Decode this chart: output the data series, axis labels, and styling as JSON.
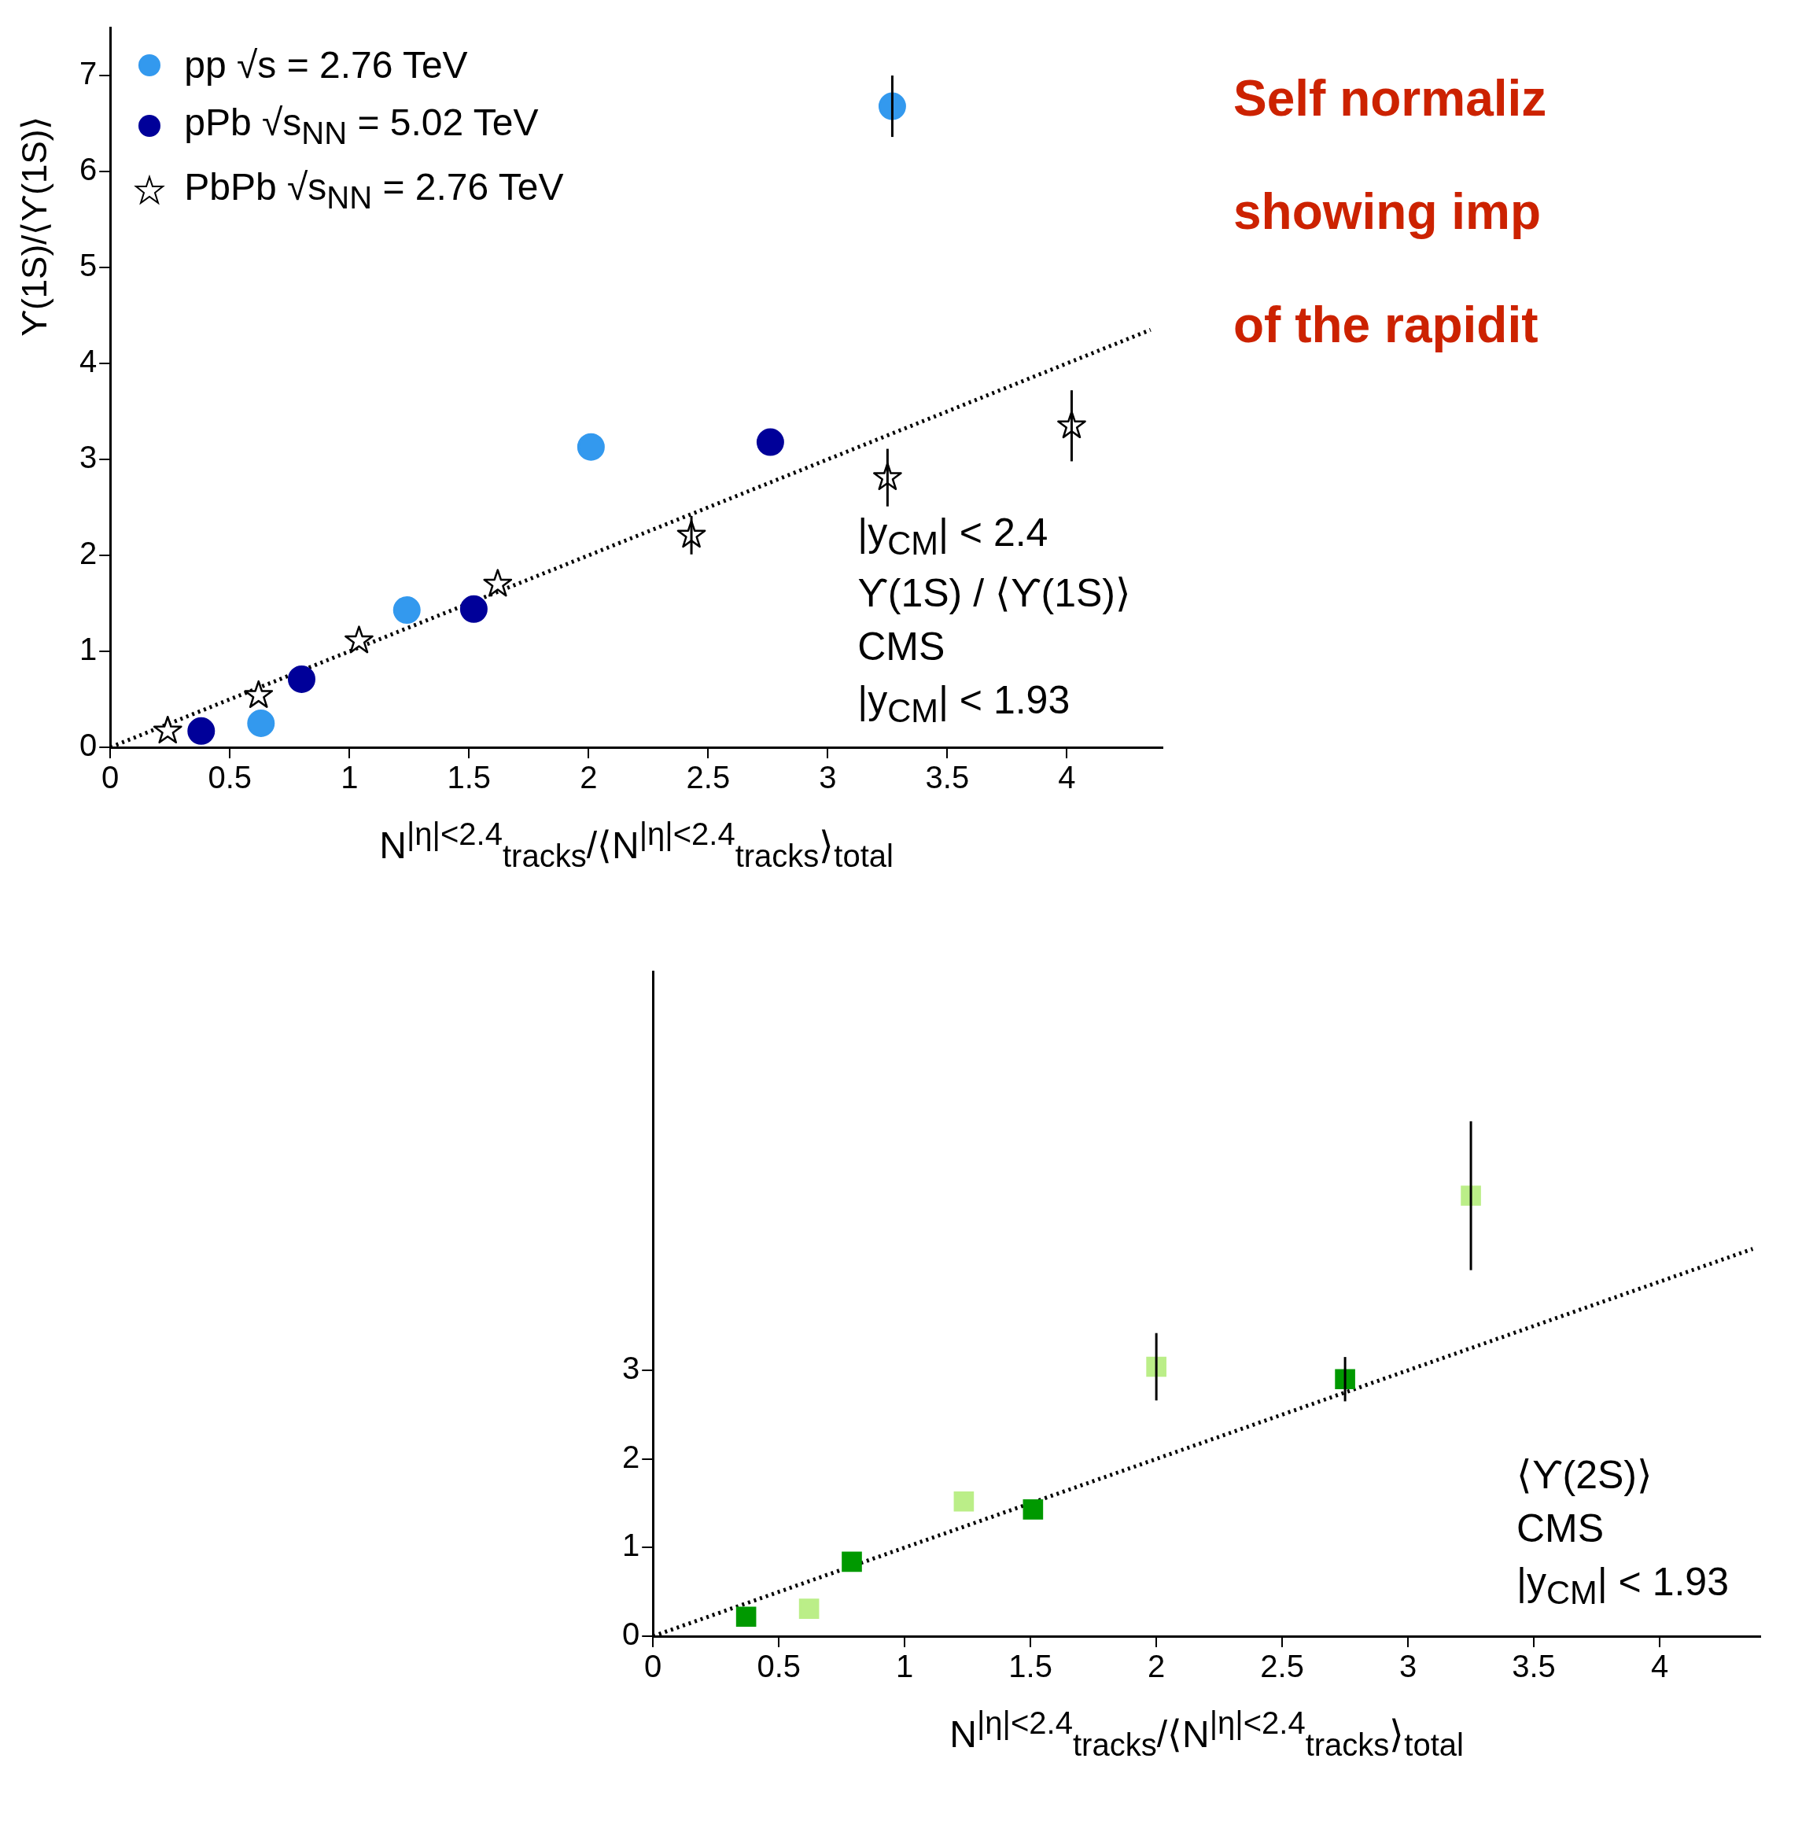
{
  "chart_data": [
    {
      "type": "scatter",
      "ylabel": "ϒ(1S)/⟨ϒ(1S)⟩",
      "xlabel": "N$^{|η|<2.4}$$_{tracks}$/⟨N$^{|η|<2.4}$$_{tracks}$⟩$_{total}$",
      "xlim": [
        0,
        4.4
      ],
      "ylim": [
        0,
        7.5
      ],
      "xticks": [
        0,
        0.5,
        1,
        1.5,
        2,
        2.5,
        3,
        3.5,
        4
      ],
      "yticks": [
        0,
        1,
        2,
        3,
        4,
        5,
        6,
        7
      ],
      "legend": "top left",
      "annotations": [
        "|y$_{CM}$| < 2.4",
        "ϒ(1S) / ⟨ϒ(1S)⟩",
        "CMS",
        "|y$_{CM}$| < 1.93"
      ],
      "series": [
        {
          "name": "pp √s = 2.76 TeV",
          "color": "#3399ee",
          "marker": "circle",
          "x": [
            0.63,
            1.24,
            2.01,
            3.27
          ],
          "values": [
            0.25,
            1.43,
            3.13,
            6.68
          ],
          "errors": [
            null,
            null,
            null,
            0.32
          ]
        },
        {
          "name": "pPb √s$_{NN}$ = 5.02 TeV",
          "color": "#000099",
          "marker": "circle",
          "x": [
            0.38,
            0.8,
            1.52,
            2.76
          ],
          "values": [
            0.17,
            0.71,
            1.44,
            3.18
          ]
        },
        {
          "name": "PbPb √s$_{NN}$ = 2.76 TeV",
          "color": "#000000",
          "marker": "star",
          "x": [
            0.24,
            0.62,
            1.04,
            1.62,
            2.43,
            3.25,
            4.02
          ],
          "values": [
            0.17,
            0.54,
            1.11,
            1.7,
            2.21,
            2.81,
            3.35
          ],
          "errors": [
            null,
            null,
            null,
            null,
            0.2,
            0.3,
            0.37
          ]
        },
        {
          "type": "line",
          "color": "#000000",
          "line_style": "dotted",
          "x": [
            0,
            4.35
          ],
          "values": [
            0,
            4.35
          ]
        }
      ]
    },
    {
      "type": "other",
      "annotations": [
        "Self normaliz",
        "showing imp",
        "of the rapidit"
      ]
    },
    {
      "type": "scatter",
      "xlabel": "N$^{|η|<2.4}$$_{tracks}$/⟨N$^{|η|<2.4}$$_{tracks}$⟩$_{total}$",
      "xlim": [
        0,
        4.4
      ],
      "ylim": [
        0,
        7.5
      ],
      "xticks": [
        0,
        0.5,
        1,
        1.5,
        2,
        2.5,
        3,
        3.5,
        4
      ],
      "yticks": [
        0,
        1,
        2,
        3
      ],
      "annotations": [
        "⟨ϒ(2S)⟩",
        "CMS",
        "|y$_{CM}$| < 1.93"
      ],
      "series": [
        {
          "color": "#bbee88",
          "marker": "square",
          "x": [
            0.62,
            1.235,
            2.0,
            3.25
          ],
          "values": [
            0.31,
            1.52,
            3.04,
            4.97
          ],
          "errors": [
            null,
            null,
            0.38,
            0.84
          ]
        },
        {
          "color": "#009900",
          "marker": "square",
          "x": [
            0.37,
            0.79,
            1.51,
            2.75
          ],
          "values": [
            0.22,
            0.84,
            1.43,
            2.9
          ],
          "errors": [
            null,
            null,
            null,
            0.25
          ]
        },
        {
          "type": "line",
          "color": "#000000",
          "line_style": "dotted",
          "x": [
            0,
            4.37
          ],
          "values": [
            0,
            4.37
          ]
        }
      ]
    }
  ]
}
